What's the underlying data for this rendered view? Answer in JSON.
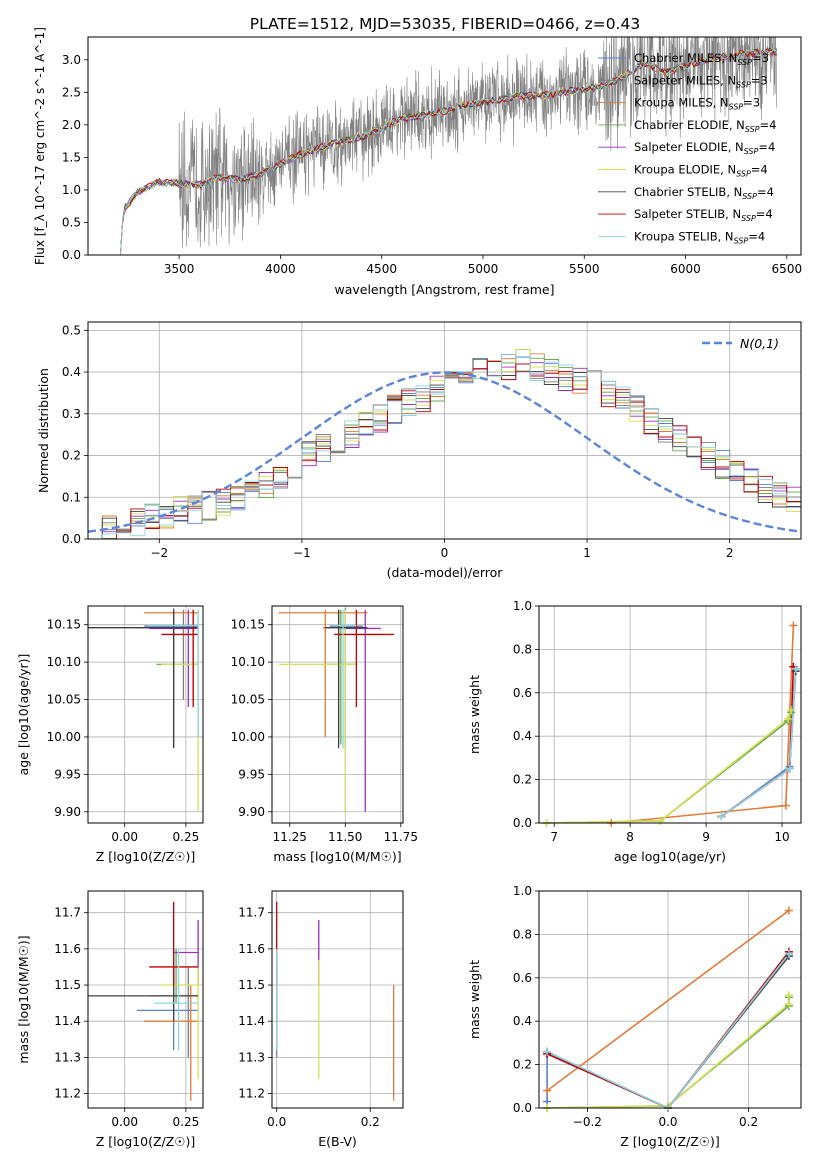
{
  "figure_title": "PLATE=1512, MJD=53035, FIBERID=0466, z=0.43",
  "series": [
    {
      "name": "Chabrier MILES, N$_{SSP}$=3",
      "label": [
        "Chabrier MILES, N",
        "SSP",
        "=3"
      ],
      "color": "#5a7fd1"
    },
    {
      "name": "Salpeter MILES, N$_{SSP}$=3",
      "label": [
        "Salpeter MILES, N",
        "SSP",
        "=3"
      ],
      "color": "#7f7f7f"
    },
    {
      "name": "Kroupa MILES, N$_{SSP}$=3",
      "label": [
        "Kroupa MILES, N",
        "SSP",
        "=3"
      ],
      "color": "#e07b39"
    },
    {
      "name": "Chabrier ELODIE, N$_{SSP}$=4",
      "label": [
        "Chabrier ELODIE, N",
        "SSP",
        "=4"
      ],
      "color": "#6aa84f"
    },
    {
      "name": "Salpeter ELODIE, N$_{SSP}$=4",
      "label": [
        "Salpeter ELODIE, N",
        "SSP",
        "=4"
      ],
      "color": "#9b30c0"
    },
    {
      "name": "Kroupa ELODIE, N$_{SSP}$=4",
      "label": [
        "Kroupa ELODIE, N",
        "SSP",
        "=4"
      ],
      "color": "#d4e157"
    },
    {
      "name": "Chabrier STELIB, N$_{SSP}$=4",
      "label": [
        "Chabrier STELIB, N",
        "SSP",
        "=4"
      ],
      "color": "#404040"
    },
    {
      "name": "Salpeter STELIB, N$_{SSP}$=4",
      "label": [
        "Salpeter STELIB, N",
        "SSP",
        "=4"
      ],
      "color": "#c00000"
    },
    {
      "name": "Kroupa STELIB, N$_{SSP}$=4",
      "label": [
        "Kroupa STELIB, N",
        "SSP",
        "=4"
      ],
      "color": "#8fd3e0"
    }
  ],
  "chart_data": [
    {
      "id": "spectrum",
      "type": "line",
      "xlabel": "wavelength [Angstrom, rest frame]",
      "ylabel": "Flux [f_λ 10^-17 erg cm^-2 s^-1 A^-1]",
      "xlim": [
        3050,
        6570
      ],
      "ylim": [
        0,
        3.35
      ],
      "xticks": [
        3500,
        4000,
        4500,
        5000,
        5500,
        6000,
        6500
      ],
      "yticks": [
        0.0,
        0.5,
        1.0,
        1.5,
        2.0,
        2.5,
        3.0
      ],
      "observed": {
        "color": "#808080",
        "wavelength_range": [
          3225,
          6450
        ]
      },
      "model_continuum": {
        "x": [
          3210,
          3230,
          3300,
          3400,
          3500,
          3600,
          3700,
          3800,
          3900,
          4000,
          4100,
          4200,
          4300,
          4400,
          4500,
          4600,
          4700,
          4800,
          4900,
          5000,
          5100,
          5200,
          5300,
          5400,
          5500,
          5600,
          5700,
          5800,
          5900,
          6000,
          6100,
          6200,
          6300,
          6400,
          6450
        ],
        "y": [
          0.0,
          0.72,
          0.98,
          1.12,
          1.1,
          1.08,
          1.2,
          1.15,
          1.25,
          1.4,
          1.55,
          1.65,
          1.75,
          1.82,
          1.95,
          2.1,
          2.15,
          2.2,
          2.3,
          2.35,
          2.4,
          2.45,
          2.45,
          2.5,
          2.55,
          2.6,
          2.75,
          2.95,
          2.8,
          2.9,
          3.0,
          3.05,
          3.1,
          3.12,
          3.12
        ]
      },
      "legend_position": "upper right"
    },
    {
      "id": "residuals",
      "type": "histogram",
      "xlabel": "(data-model)/error",
      "ylabel": "Normed distribution",
      "xlim": [
        -2.5,
        2.5
      ],
      "ylim": [
        0,
        0.52
      ],
      "xticks": [
        -2,
        -1,
        0,
        1,
        2
      ],
      "yticks": [
        0.0,
        0.1,
        0.2,
        0.3,
        0.4,
        0.5
      ],
      "bin_width": 0.1,
      "bin_start": -2.5,
      "values": [
        0.03,
        0.03,
        0.04,
        0.04,
        0.05,
        0.06,
        0.07,
        0.07,
        0.08,
        0.09,
        0.1,
        0.11,
        0.13,
        0.15,
        0.17,
        0.2,
        0.22,
        0.24,
        0.25,
        0.27,
        0.29,
        0.31,
        0.33,
        0.34,
        0.36,
        0.38,
        0.39,
        0.4,
        0.41,
        0.41,
        0.42,
        0.41,
        0.4,
        0.39,
        0.38,
        0.37,
        0.35,
        0.33,
        0.31,
        0.28,
        0.26,
        0.24,
        0.22,
        0.2,
        0.18,
        0.16,
        0.14,
        0.12,
        0.1,
        0.09
      ],
      "gaussian_label": "N(0,1)",
      "gaussian_color": "#5b86d6",
      "legend_position": "upper right"
    },
    {
      "id": "age_vs_z",
      "type": "errorbar",
      "xlabel": "Z [log10(Z/Z☉)]",
      "ylabel": "age [log10(age/yr)]",
      "xlim": [
        -0.15,
        0.32
      ],
      "ylim": [
        9.885,
        10.175
      ],
      "xticks": [
        0.0,
        0.25
      ],
      "yticks": [
        9.9,
        9.95,
        10.0,
        10.05,
        10.1,
        10.15
      ],
      "points": [
        {
          "s": 0,
          "x": 0.2,
          "y": 10.148,
          "xlo": 0.08,
          "xhi": 0.3,
          "ylo": 9.985,
          "yhi": 10.172
        },
        {
          "s": 1,
          "x": 0.24,
          "y": 10.146,
          "xlo": 0.05,
          "xhi": 0.3,
          "ylo": 10.05,
          "yhi": 10.17
        },
        {
          "s": 2,
          "x": 0.28,
          "y": 10.166,
          "xlo": 0.08,
          "xhi": 0.3,
          "ylo": 10.04,
          "yhi": 10.17
        },
        {
          "s": 3,
          "x": 0.2,
          "y": 10.097,
          "xlo": 0.13,
          "xhi": 0.3,
          "ylo": 9.99,
          "yhi": 10.17
        },
        {
          "s": 4,
          "x": 0.26,
          "y": 10.145,
          "xlo": 0.1,
          "xhi": 0.3,
          "ylo": 10.04,
          "yhi": 10.17
        },
        {
          "s": 5,
          "x": 0.3,
          "y": 10.097,
          "xlo": 0.15,
          "xhi": 0.3,
          "ylo": 9.9,
          "yhi": 10.17
        },
        {
          "s": 6,
          "x": 0.2,
          "y": 10.146,
          "xlo": -0.15,
          "xhi": 0.3,
          "ylo": 9.985,
          "yhi": 10.17
        },
        {
          "s": 7,
          "x": 0.28,
          "y": 10.137,
          "xlo": 0.15,
          "xhi": 0.3,
          "ylo": 10.04,
          "yhi": 10.17
        },
        {
          "s": 8,
          "x": 0.3,
          "y": 10.149,
          "xlo": 0.1,
          "xhi": 0.3,
          "ylo": 10.0,
          "yhi": 10.17
        }
      ]
    },
    {
      "id": "age_vs_mass",
      "type": "errorbar",
      "xlabel": "mass [log10(M/M☉)]",
      "ylabel": "",
      "xlim": [
        11.17,
        11.76
      ],
      "ylim": [
        9.885,
        10.175
      ],
      "xticks": [
        11.25,
        11.5,
        11.75
      ],
      "yticks": [
        9.9,
        9.95,
        10.0,
        10.05,
        10.1,
        10.15
      ],
      "points": [
        {
          "s": 0,
          "x": 11.5,
          "y": 10.148,
          "xlo": 11.43,
          "xhi": 11.58,
          "ylo": 9.985,
          "yhi": 10.172
        },
        {
          "s": 1,
          "x": 11.47,
          "y": 10.146,
          "xlo": 11.4,
          "xhi": 11.55,
          "ylo": 10.0,
          "yhi": 10.17
        },
        {
          "s": 2,
          "x": 11.41,
          "y": 10.166,
          "xlo": 11.2,
          "xhi": 11.6,
          "ylo": 10.0,
          "yhi": 10.17
        },
        {
          "s": 3,
          "x": 11.48,
          "y": 10.097,
          "xlo": 11.4,
          "xhi": 11.55,
          "ylo": 9.99,
          "yhi": 10.17
        },
        {
          "s": 4,
          "x": 11.59,
          "y": 10.145,
          "xlo": 11.5,
          "xhi": 11.66,
          "ylo": 9.9,
          "yhi": 10.17
        },
        {
          "s": 5,
          "x": 11.5,
          "y": 10.097,
          "xlo": 11.2,
          "xhi": 11.55,
          "ylo": 9.9,
          "yhi": 10.17
        },
        {
          "s": 6,
          "x": 11.47,
          "y": 10.146,
          "xlo": 11.41,
          "xhi": 11.6,
          "ylo": 9.985,
          "yhi": 10.17
        },
        {
          "s": 7,
          "x": 11.55,
          "y": 10.137,
          "xlo": 11.45,
          "xhi": 11.72,
          "ylo": 10.04,
          "yhi": 10.17
        },
        {
          "s": 8,
          "x": 11.49,
          "y": 10.149,
          "xlo": 11.45,
          "xhi": 11.55,
          "ylo": 9.985,
          "yhi": 10.17
        }
      ]
    },
    {
      "id": "weight_vs_age",
      "type": "line",
      "xlabel": "age  log10(age/yr)",
      "ylabel": "mass weight",
      "xlim": [
        6.8,
        10.25
      ],
      "ylim": [
        0,
        1
      ],
      "xticks": [
        7,
        8,
        9,
        10
      ],
      "yticks": [
        0.0,
        0.2,
        0.4,
        0.6,
        0.8,
        1.0
      ],
      "lines": [
        {
          "s": 0,
          "x": [
            9.2,
            10.1,
            10.18
          ],
          "y": [
            0.03,
            0.26,
            0.71
          ]
        },
        {
          "s": 2,
          "x": [
            7.75,
            10.05,
            10.15
          ],
          "y": [
            0.0,
            0.08,
            0.91
          ]
        },
        {
          "s": 3,
          "x": [
            6.9,
            8.4,
            10.08,
            10.12
          ],
          "y": [
            0.0,
            0.01,
            0.47,
            0.51
          ]
        },
        {
          "s": 5,
          "x": [
            6.9,
            8.4,
            10.08,
            10.12
          ],
          "y": [
            0.0,
            0.01,
            0.48,
            0.52
          ]
        },
        {
          "s": 6,
          "x": [
            9.2,
            10.1,
            10.18
          ],
          "y": [
            0.03,
            0.25,
            0.7
          ]
        },
        {
          "s": 7,
          "x": [
            9.2,
            10.1,
            10.15
          ],
          "y": [
            0.03,
            0.25,
            0.72
          ]
        },
        {
          "s": 8,
          "x": [
            9.2,
            10.1,
            10.18
          ],
          "y": [
            0.03,
            0.25,
            0.71
          ]
        }
      ]
    },
    {
      "id": "mass_vs_z",
      "type": "errorbar",
      "xlabel": "Z [log10(Z/Z☉)]",
      "ylabel": "mass [log10(M/M☉)]",
      "xlim": [
        -0.15,
        0.32
      ],
      "ylim": [
        11.16,
        11.76
      ],
      "xticks": [
        0.0,
        0.25
      ],
      "yticks": [
        11.2,
        11.3,
        11.4,
        11.5,
        11.6,
        11.7
      ],
      "points": [
        {
          "s": 0,
          "x": 0.2,
          "y": 11.43,
          "xlo": 0.05,
          "xhi": 0.3,
          "ylo": 11.32,
          "yhi": 11.6
        },
        {
          "s": 1,
          "x": 0.26,
          "y": 11.47,
          "xlo": 0.1,
          "xhi": 0.3,
          "ylo": 11.3,
          "yhi": 11.55
        },
        {
          "s": 2,
          "x": 0.27,
          "y": 11.4,
          "xlo": 0.08,
          "xhi": 0.3,
          "ylo": 11.18,
          "yhi": 11.5
        },
        {
          "s": 3,
          "x": 0.21,
          "y": 11.47,
          "xlo": 0.15,
          "xhi": 0.3,
          "ylo": 11.45,
          "yhi": 11.6
        },
        {
          "s": 4,
          "x": 0.3,
          "y": 11.59,
          "xlo": 0.2,
          "xhi": 0.3,
          "ylo": 11.5,
          "yhi": 11.68
        },
        {
          "s": 5,
          "x": 0.3,
          "y": 11.5,
          "xlo": 0.15,
          "xhi": 0.3,
          "ylo": 11.24,
          "yhi": 11.55
        },
        {
          "s": 6,
          "x": 0.2,
          "y": 11.47,
          "xlo": -0.15,
          "xhi": 0.3,
          "ylo": 11.4,
          "yhi": 11.55
        },
        {
          "s": 7,
          "x": 0.2,
          "y": 11.55,
          "xlo": 0.1,
          "xhi": 0.3,
          "ylo": 11.5,
          "yhi": 11.73
        },
        {
          "s": 8,
          "x": 0.22,
          "y": 11.45,
          "xlo": 0.12,
          "xhi": 0.3,
          "ylo": 11.32,
          "yhi": 11.6
        }
      ]
    },
    {
      "id": "mass_vs_ebv",
      "type": "errorbar",
      "xlabel": "E(B-V)",
      "ylabel": "",
      "xlim": [
        -0.01,
        0.27
      ],
      "ylim": [
        11.16,
        11.76
      ],
      "xticks": [
        0.0,
        0.2
      ],
      "yticks": [
        11.2,
        11.3,
        11.4,
        11.5,
        11.6,
        11.7
      ],
      "points": [
        {
          "s": 0,
          "x": 0.0,
          "y": 11.43,
          "xlo": 0.0,
          "xhi": 0.0,
          "ylo": 11.32,
          "yhi": 11.6
        },
        {
          "s": 1,
          "x": 0.0,
          "y": 11.47,
          "xlo": 0.0,
          "xhi": 0.0,
          "ylo": 11.3,
          "yhi": 11.55
        },
        {
          "s": 2,
          "x": 0.25,
          "y": 11.4,
          "xlo": 0.25,
          "xhi": 0.25,
          "ylo": 11.18,
          "yhi": 11.5
        },
        {
          "s": 3,
          "x": 0.0,
          "y": 11.47,
          "xlo": 0.0,
          "xhi": 0.0,
          "ylo": 11.35,
          "yhi": 11.6
        },
        {
          "s": 4,
          "x": 0.09,
          "y": 11.59,
          "xlo": 0.09,
          "xhi": 0.09,
          "ylo": 11.5,
          "yhi": 11.68
        },
        {
          "s": 5,
          "x": 0.09,
          "y": 11.5,
          "xlo": 0.09,
          "xhi": 0.09,
          "ylo": 11.24,
          "yhi": 11.57
        },
        {
          "s": 6,
          "x": 0.0,
          "y": 11.47,
          "xlo": 0.0,
          "xhi": 0.0,
          "ylo": 11.4,
          "yhi": 11.55
        },
        {
          "s": 7,
          "x": 0.0,
          "y": 11.62,
          "xlo": 0.0,
          "xhi": 0.0,
          "ylo": 11.5,
          "yhi": 11.73
        },
        {
          "s": 8,
          "x": 0.0,
          "y": 11.45,
          "xlo": 0.0,
          "xhi": 0.0,
          "ylo": 11.32,
          "yhi": 11.6
        }
      ]
    },
    {
      "id": "weight_vs_z",
      "type": "line",
      "xlabel": "Z [log10(Z/Z☉)]",
      "ylabel": "mass weight",
      "xlim": [
        -0.32,
        0.33
      ],
      "ylim": [
        0,
        1
      ],
      "xticks": [
        -0.2,
        0.0,
        0.2
      ],
      "yticks": [
        0.0,
        0.2,
        0.4,
        0.6,
        0.8,
        1.0
      ],
      "lines": [
        {
          "s": 0,
          "x": [
            -0.3,
            -0.3,
            0.0,
            0.3
          ],
          "y": [
            0.03,
            0.26,
            0.0,
            0.71
          ]
        },
        {
          "s": 2,
          "x": [
            -0.3,
            0.3
          ],
          "y": [
            0.08,
            0.91
          ]
        },
        {
          "s": 3,
          "x": [
            -0.3,
            0.0,
            0.3,
            0.3
          ],
          "y": [
            0.0,
            0.01,
            0.47,
            0.51
          ]
        },
        {
          "s": 5,
          "x": [
            -0.3,
            0.0,
            0.3,
            0.3
          ],
          "y": [
            0.0,
            0.01,
            0.48,
            0.52
          ]
        },
        {
          "s": 6,
          "x": [
            -0.3,
            0.0,
            0.3
          ],
          "y": [
            0.25,
            0.0,
            0.7
          ]
        },
        {
          "s": 7,
          "x": [
            -0.3,
            0.0,
            0.3
          ],
          "y": [
            0.25,
            0.0,
            0.72
          ]
        },
        {
          "s": 8,
          "x": [
            -0.3,
            0.0,
            0.3
          ],
          "y": [
            0.26,
            0.0,
            0.71
          ]
        }
      ]
    }
  ]
}
